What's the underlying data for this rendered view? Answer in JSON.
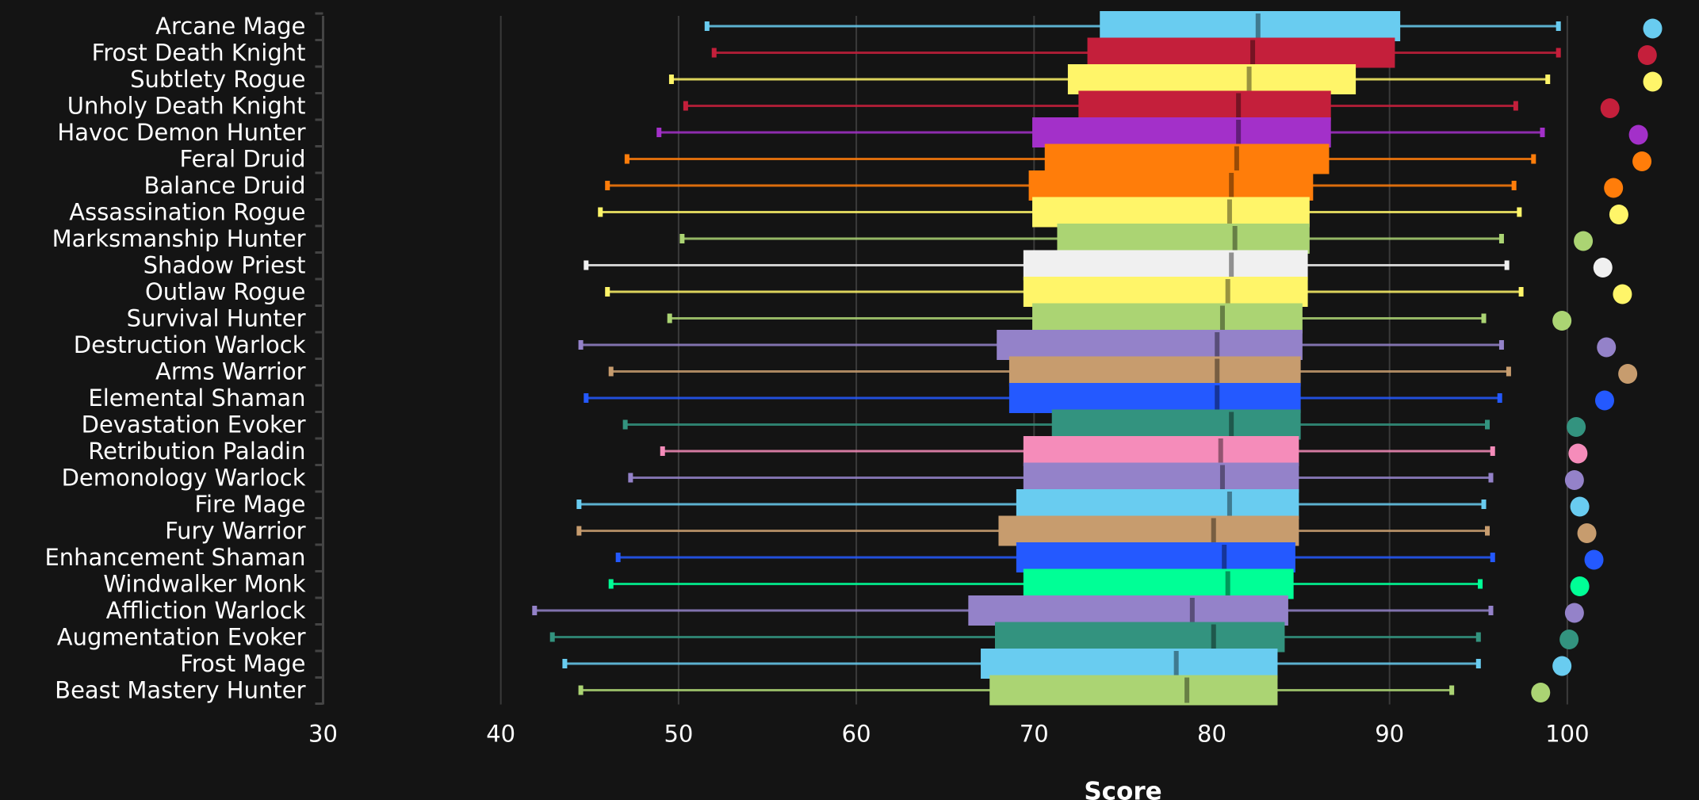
{
  "chart_data": {
    "type": "boxplot",
    "title": "",
    "xlabel": "Score",
    "ylabel": "",
    "xlim": [
      30,
      106
    ],
    "xticks": [
      30,
      40,
      50,
      60,
      70,
      80,
      90,
      100
    ],
    "grid": "vertical",
    "legend": "none",
    "series": [
      {
        "name": "Arcane Mage",
        "color": "#69CCF0",
        "whisker_low": 51.6,
        "q1": 73.7,
        "median": 82.6,
        "q3": 90.6,
        "whisker_high": 99.5,
        "outlier": 104.8
      },
      {
        "name": "Frost Death Knight",
        "color": "#C41F3B",
        "whisker_low": 52.0,
        "q1": 73.0,
        "median": 82.3,
        "q3": 90.3,
        "whisker_high": 99.5,
        "outlier": 104.5
      },
      {
        "name": "Subtlety Rogue",
        "color": "#FFF569",
        "whisker_low": 49.6,
        "q1": 71.9,
        "median": 82.1,
        "q3": 88.1,
        "whisker_high": 98.9,
        "outlier": 104.8
      },
      {
        "name": "Unholy Death Knight",
        "color": "#C41F3B",
        "whisker_low": 50.4,
        "q1": 72.5,
        "median": 81.5,
        "q3": 86.7,
        "whisker_high": 97.1,
        "outlier": 102.4
      },
      {
        "name": "Havoc Demon Hunter",
        "color": "#A330C9",
        "whisker_low": 48.9,
        "q1": 69.9,
        "median": 81.5,
        "q3": 86.7,
        "whisker_high": 98.6,
        "outlier": 104.0
      },
      {
        "name": "Feral Druid",
        "color": "#FF7D0A",
        "whisker_low": 47.1,
        "q1": 70.6,
        "median": 81.4,
        "q3": 86.6,
        "whisker_high": 98.1,
        "outlier": 104.2
      },
      {
        "name": "Balance Druid",
        "color": "#FF7D0A",
        "whisker_low": 46.0,
        "q1": 69.7,
        "median": 81.1,
        "q3": 85.7,
        "whisker_high": 97.0,
        "outlier": 102.6
      },
      {
        "name": "Assassination Rogue",
        "color": "#FFF569",
        "whisker_low": 45.6,
        "q1": 69.9,
        "median": 81.0,
        "q3": 85.5,
        "whisker_high": 97.3,
        "outlier": 102.9
      },
      {
        "name": "Marksmanship Hunter",
        "color": "#ABD473",
        "whisker_low": 50.2,
        "q1": 71.3,
        "median": 81.3,
        "q3": 85.5,
        "whisker_high": 96.3,
        "outlier": 100.9
      },
      {
        "name": "Shadow Priest",
        "color": "#F0F0F0",
        "whisker_low": 44.8,
        "q1": 69.4,
        "median": 81.1,
        "q3": 85.4,
        "whisker_high": 96.6,
        "outlier": 102.0
      },
      {
        "name": "Outlaw Rogue",
        "color": "#FFF569",
        "whisker_low": 46.0,
        "q1": 69.4,
        "median": 80.9,
        "q3": 85.4,
        "whisker_high": 97.4,
        "outlier": 103.1
      },
      {
        "name": "Survival Hunter",
        "color": "#ABD473",
        "whisker_low": 49.5,
        "q1": 69.9,
        "median": 80.6,
        "q3": 85.1,
        "whisker_high": 95.3,
        "outlier": 99.7
      },
      {
        "name": "Destruction Warlock",
        "color": "#9482C9",
        "whisker_low": 44.5,
        "q1": 67.9,
        "median": 80.3,
        "q3": 85.1,
        "whisker_high": 96.3,
        "outlier": 102.2
      },
      {
        "name": "Arms Warrior",
        "color": "#C79C6E",
        "whisker_low": 46.2,
        "q1": 68.6,
        "median": 80.3,
        "q3": 85.0,
        "whisker_high": 96.7,
        "outlier": 103.4
      },
      {
        "name": "Elemental Shaman",
        "color": "#2459FF",
        "whisker_low": 44.8,
        "q1": 68.6,
        "median": 80.3,
        "q3": 85.0,
        "whisker_high": 96.2,
        "outlier": 102.1
      },
      {
        "name": "Devastation Evoker",
        "color": "#33937F",
        "whisker_low": 47.0,
        "q1": 71.0,
        "median": 81.1,
        "q3": 85.0,
        "whisker_high": 95.5,
        "outlier": 100.5
      },
      {
        "name": "Retribution Paladin",
        "color": "#F58CBA",
        "whisker_low": 49.1,
        "q1": 69.4,
        "median": 80.5,
        "q3": 84.9,
        "whisker_high": 95.8,
        "outlier": 100.6
      },
      {
        "name": "Demonology Warlock",
        "color": "#9482C9",
        "whisker_low": 47.3,
        "q1": 69.4,
        "median": 80.6,
        "q3": 84.9,
        "whisker_high": 95.7,
        "outlier": 100.4
      },
      {
        "name": "Fire Mage",
        "color": "#69CCF0",
        "whisker_low": 44.4,
        "q1": 69.0,
        "median": 81.0,
        "q3": 84.9,
        "whisker_high": 95.3,
        "outlier": 100.7
      },
      {
        "name": "Fury Warrior",
        "color": "#C79C6E",
        "whisker_low": 44.4,
        "q1": 68.0,
        "median": 80.1,
        "q3": 84.9,
        "whisker_high": 95.5,
        "outlier": 101.1
      },
      {
        "name": "Enhancement Shaman",
        "color": "#2459FF",
        "whisker_low": 46.6,
        "q1": 69.0,
        "median": 80.7,
        "q3": 84.7,
        "whisker_high": 95.8,
        "outlier": 101.5
      },
      {
        "name": "Windwalker Monk",
        "color": "#00FF96",
        "whisker_low": 46.2,
        "q1": 69.4,
        "median": 80.9,
        "q3": 84.6,
        "whisker_high": 95.1,
        "outlier": 100.7
      },
      {
        "name": "Affliction Warlock",
        "color": "#9482C9",
        "whisker_low": 41.9,
        "q1": 66.3,
        "median": 78.9,
        "q3": 84.3,
        "whisker_high": 95.7,
        "outlier": 100.4
      },
      {
        "name": "Augmentation Evoker",
        "color": "#33937F",
        "whisker_low": 42.9,
        "q1": 67.8,
        "median": 80.1,
        "q3": 84.1,
        "whisker_high": 95.0,
        "outlier": 100.1
      },
      {
        "name": "Frost Mage",
        "color": "#69CCF0",
        "whisker_low": 43.6,
        "q1": 67.0,
        "median": 78.0,
        "q3": 83.7,
        "whisker_high": 95.0,
        "outlier": 99.7
      },
      {
        "name": "Beast Mastery Hunter",
        "color": "#ABD473",
        "whisker_low": 44.5,
        "q1": 67.5,
        "median": 78.6,
        "q3": 83.7,
        "whisker_high": 93.5,
        "outlier": 98.5
      }
    ]
  },
  "colors": {
    "background": "#141414",
    "grid": "#3a3a3a",
    "axis": "#444444",
    "text": "#ffffff"
  }
}
